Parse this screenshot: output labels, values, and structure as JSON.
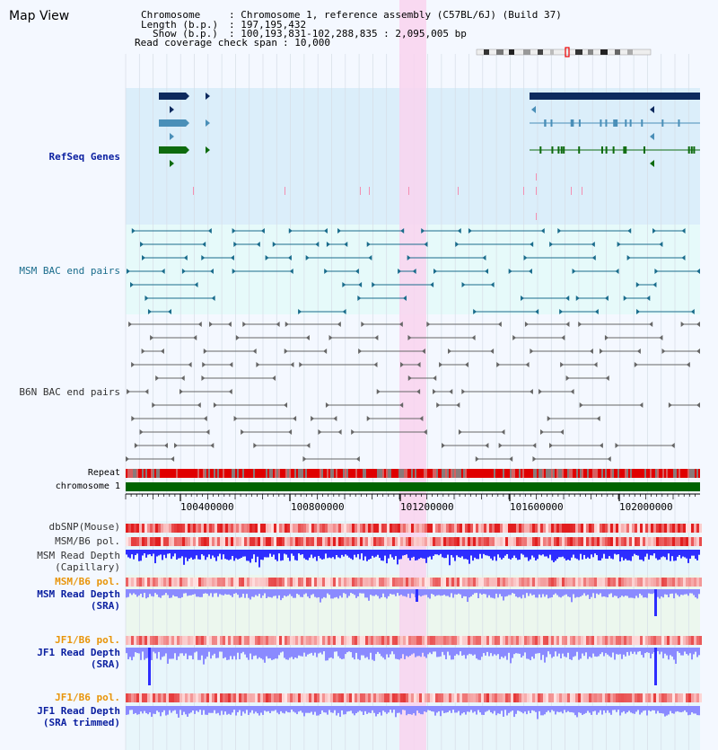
{
  "app": {
    "title": "Map View"
  },
  "header": {
    "chromosome_label": "Chromosome",
    "chromosome_value": ": Chromosome 1, reference assembly (C57BL/6J) (Build 37)",
    "length_label": "Length (b.p.)",
    "length_value": ": 197,195,432",
    "show_label": "Show (b.p.)",
    "show_value": ": 100,193,831-102,288,835 : 2,095,005 bp",
    "read_span_label": "Read coverage check span",
    "read_span_value": ": 10,000"
  },
  "tracks": {
    "refseq": "RefSeq Genes",
    "msm_bac": "MSM BAC end pairs",
    "b6n_bac": "B6N BAC end pairs",
    "repeat": "Repeat",
    "chromosome": "chromosome 1",
    "dbsnp": "dbSNP(Mouse)",
    "msm_b6_pol": "MSM/B6 pol.",
    "msm_depth_cap_1": "MSM Read Depth",
    "msm_depth_cap_2": "(Capillary)",
    "msm_b6_pol_2": "MSM/B6 pol.",
    "msm_depth_sra_1": "MSM Read Depth",
    "msm_depth_sra_2": "(SRA)",
    "jf1_b6_pol_1": "JF1/B6 pol.",
    "jf1_depth_sra_1": "JF1 Read Depth",
    "jf1_depth_sra_2": "(SRA)",
    "jf1_b6_pol_2": "JF1/B6 pol.",
    "jf1_depth_trim_1": "JF1 Read Depth",
    "jf1_depth_trim_2": "(SRA trimmed)"
  },
  "ruler": {
    "ticks": [
      "100400000",
      "100800000",
      "101200000",
      "101600000",
      "102000000"
    ]
  },
  "colors": {
    "highlight": "#f9d3ee",
    "refseq_bg": "#dbeefa",
    "bac_bg": "#e6fafa",
    "gene_navy": "#0d2a5e",
    "gene_steel": "#4a8fb8",
    "gene_green": "#0e6b0e",
    "chrom_bar": "#006400",
    "depth_blue": "#2d2dff",
    "depth_light": "#8a8aff",
    "pol_red": "#e8242c",
    "msm_bac": "#1a6c8c",
    "b6n_bac": "#666666"
  }
}
